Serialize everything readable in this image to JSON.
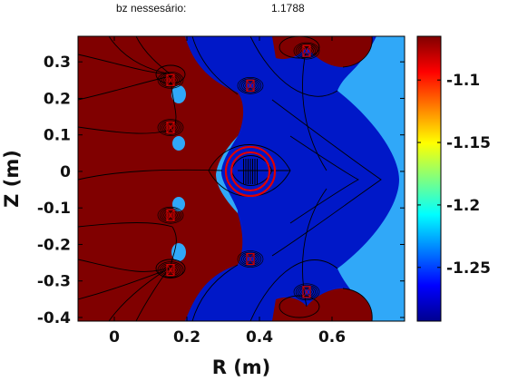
{
  "header": {
    "label": "bz nessesário:",
    "value": "1.1788"
  },
  "chart_data": {
    "type": "heatmap",
    "title": "",
    "xlabel": "R (m)",
    "ylabel": "Z (m)",
    "xlim": [
      -0.1,
      0.8
    ],
    "ylim": [
      -0.41,
      0.37
    ],
    "x_ticks": [
      0,
      0.2,
      0.4,
      0.6
    ],
    "x_tick_labels": [
      "0",
      "0.2",
      "0.4",
      "0.6"
    ],
    "y_ticks": [
      0.3,
      0.2,
      0.1,
      0,
      -0.1,
      -0.2,
      -0.3,
      -0.4
    ],
    "y_tick_labels": [
      "0.3",
      "0.2",
      "0.1",
      "0",
      "-0.1",
      "-0.2",
      "-0.3",
      "-0.4"
    ],
    "colorbar": {
      "colormap": "jet",
      "range": [
        -1.293,
        -1.065
      ],
      "ticks": [
        -1.1,
        -1.15,
        -1.2,
        -1.25
      ],
      "tick_labels": [
        "-1.1",
        "-1.15",
        "-1.2",
        "-1.25"
      ]
    },
    "regions": [
      {
        "name": "inner-region",
        "level": "max",
        "color": "#800000"
      },
      {
        "name": "outer-region",
        "level": "near-min",
        "color": "#0018c8"
      },
      {
        "name": "edge-region",
        "level": "intermediate",
        "color": "#30a8f8"
      }
    ],
    "coils": [
      {
        "r": 0.155,
        "z": 0.25
      },
      {
        "r": 0.155,
        "z": 0.12
      },
      {
        "r": 0.155,
        "z": -0.12
      },
      {
        "r": 0.155,
        "z": -0.27
      },
      {
        "r": 0.375,
        "z": 0.235
      },
      {
        "r": 0.375,
        "z": -0.24
      },
      {
        "r": 0.53,
        "z": 0.33
      },
      {
        "r": 0.53,
        "z": -0.33
      }
    ],
    "marker": {
      "r": 0.375,
      "z": 0.0,
      "shape": "double-circle",
      "color": "#e00000"
    },
    "grid": false
  }
}
